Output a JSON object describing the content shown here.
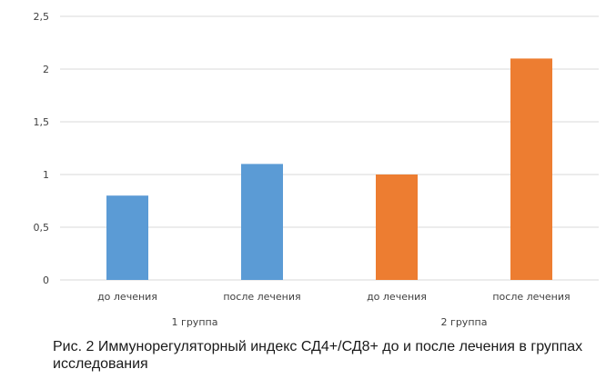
{
  "chart_data": {
    "type": "bar",
    "ylim": [
      0,
      2.5
    ],
    "yticks": [
      "0",
      "0,5",
      "1",
      "1,5",
      "2",
      "2,5"
    ],
    "ytick_values": [
      0,
      0.5,
      1,
      1.5,
      2,
      2.5
    ],
    "grid": true,
    "categories": [
      "до лечения",
      "после лечения",
      "до лечения",
      "после лечения"
    ],
    "groups": [
      {
        "label": "1 группа",
        "color": "#5b9bd5",
        "categories": [
          "до лечения",
          "после лечения"
        ],
        "values": [
          0.8,
          1.1
        ]
      },
      {
        "label": "2 группа",
        "color": "#ed7d31",
        "categories": [
          "до лечения",
          "после лечения"
        ],
        "values": [
          1.0,
          2.1
        ]
      }
    ]
  },
  "caption": "Рис. 2 Иммунорегуляторный индекс СД4+/СД8+ до и после лечения в группах исследования"
}
